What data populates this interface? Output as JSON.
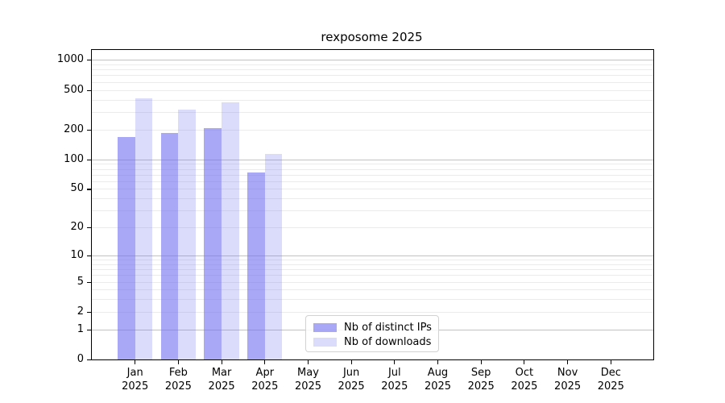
{
  "title": "rexposome 2025",
  "chart_data": {
    "type": "bar",
    "title": "rexposome 2025",
    "categories": [
      "Jan",
      "Feb",
      "Mar",
      "Apr",
      "May",
      "Jun",
      "Jul",
      "Aug",
      "Sep",
      "Oct",
      "Nov",
      "Dec"
    ],
    "x_tick_year": "2025",
    "series": [
      {
        "name": "Nb of distinct IPs",
        "color": "rgba(110,110,240,0.60)",
        "values": [
          167,
          183,
          207,
          73,
          null,
          null,
          null,
          null,
          null,
          null,
          null,
          null
        ]
      },
      {
        "name": "Nb of downloads",
        "color": "rgba(110,110,240,0.25)",
        "values": [
          413,
          317,
          377,
          113,
          null,
          null,
          null,
          null,
          null,
          null,
          null,
          null
        ]
      }
    ],
    "y_axis": {
      "scale": "log1p",
      "ticks": [
        0,
        1,
        2,
        5,
        10,
        20,
        50,
        100,
        200,
        500,
        1000
      ],
      "major_gridlines": [
        1,
        10,
        100,
        1000
      ],
      "ylim": [
        0,
        1400
      ]
    },
    "xlabel": "",
    "ylabel": "",
    "grid": true,
    "legend_position": "bottom-center-inside"
  },
  "colors": {
    "bar_distinct_ips": "rgba(110,110,240,0.60)",
    "bar_downloads": "rgba(110,110,240,0.25)",
    "grid_major": "#c2c2c2",
    "grid_minor": "#ebebeb",
    "frame": "#000000",
    "background": "#ffffff"
  }
}
